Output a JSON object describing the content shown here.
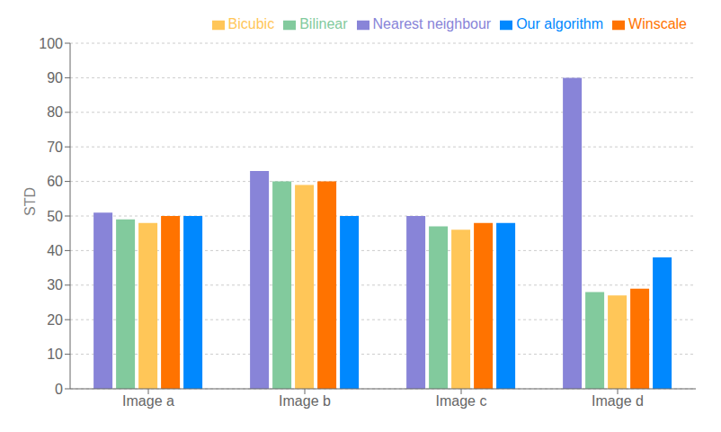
{
  "chart_data": {
    "type": "bar",
    "categories": [
      "Image a",
      "Image b",
      "Image c",
      "Image d"
    ],
    "series": [
      {
        "name": "Nearest neighbour",
        "color": "#8884d8",
        "values": [
          51,
          63,
          50,
          90
        ]
      },
      {
        "name": "Bilinear",
        "color": "#82ca9d",
        "values": [
          49,
          60,
          47,
          28
        ]
      },
      {
        "name": "Bicubic",
        "color": "#ffc658",
        "values": [
          48,
          59,
          46,
          27
        ]
      },
      {
        "name": "Winscale",
        "color": "#ff7300",
        "values": [
          50,
          60,
          48,
          29
        ]
      },
      {
        "name": "Our algorithm",
        "color": "#0088fe",
        "values": [
          50,
          50,
          48,
          38
        ]
      }
    ],
    "ylabel": "STD",
    "ylim": [
      0,
      100
    ],
    "yticks": [
      0,
      10,
      20,
      30,
      40,
      50,
      60,
      70,
      80,
      90,
      100
    ],
    "grid": true,
    "legend": "upper right"
  }
}
